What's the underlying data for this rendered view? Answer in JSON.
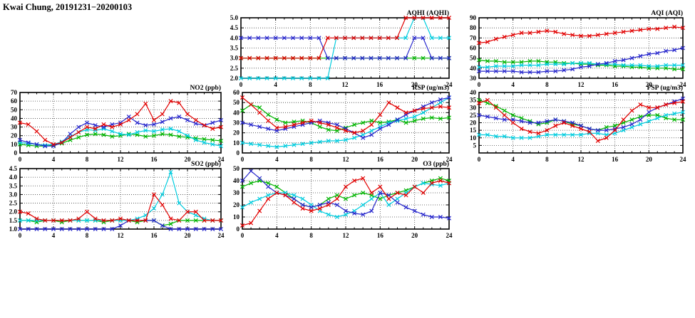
{
  "page_title": "Kwai Chung, 20191231−20200103",
  "colors": {
    "red": "#e10000",
    "green": "#00b400",
    "blue": "#2626cc",
    "cyan": "#00ccde",
    "grid": "#444444",
    "frame": "#000000"
  },
  "chart_data": [
    {
      "id": "aqhi",
      "type": "line",
      "title": "AQHI (AQHI)",
      "marker": "x",
      "grid": "dotted",
      "xlim": [
        0,
        24
      ],
      "xticks": [
        0,
        4,
        8,
        12,
        16,
        20,
        24
      ],
      "ylim": [
        2,
        5
      ],
      "yticks": [
        2,
        2.5,
        3,
        3.5,
        4,
        4.5,
        5
      ],
      "ydec": 1,
      "x": [
        0,
        1,
        2,
        3,
        4,
        5,
        6,
        7,
        8,
        9,
        10,
        11,
        12,
        13,
        14,
        15,
        16,
        17,
        18,
        19,
        20,
        21,
        22,
        23,
        24
      ],
      "series": [
        {
          "name": "green",
          "color": "green",
          "values": [
            3,
            3,
            3,
            3,
            3,
            3,
            3,
            3,
            3,
            3,
            3,
            3,
            3,
            3,
            3,
            3,
            3,
            3,
            3,
            3,
            3,
            3,
            3,
            3,
            3
          ]
        },
        {
          "name": "cyan",
          "color": "cyan",
          "values": [
            2,
            2,
            2,
            2,
            2,
            2,
            2,
            2,
            2,
            2,
            2,
            4,
            4,
            4,
            4,
            4,
            4,
            4,
            4,
            4,
            5,
            5,
            4,
            4,
            4
          ]
        },
        {
          "name": "blue",
          "color": "blue",
          "values": [
            4,
            4,
            4,
            4,
            4,
            4,
            4,
            4,
            4,
            4,
            3,
            3,
            3,
            3,
            3,
            3,
            3,
            3,
            3,
            3,
            4,
            4,
            3,
            3,
            3
          ]
        },
        {
          "name": "red",
          "color": "red",
          "values": [
            3,
            3,
            3,
            3,
            3,
            3,
            3,
            3,
            3,
            3,
            4,
            4,
            4,
            4,
            4,
            4,
            4,
            4,
            4,
            5,
            5,
            5,
            5,
            5,
            5
          ]
        }
      ]
    },
    {
      "id": "aqi",
      "type": "line",
      "title": "AQI (AQI)",
      "marker": "x",
      "grid": "dotted",
      "xlim": [
        0,
        24
      ],
      "xticks": [
        0,
        4,
        8,
        12,
        16,
        20,
        24
      ],
      "ylim": [
        30,
        90
      ],
      "yticks": [
        30,
        40,
        50,
        60,
        70,
        80,
        90
      ],
      "ydec": 0,
      "x": [
        0,
        1,
        2,
        3,
        4,
        5,
        6,
        7,
        8,
        9,
        10,
        11,
        12,
        13,
        14,
        15,
        16,
        17,
        18,
        19,
        20,
        21,
        22,
        23,
        24
      ],
      "series": [
        {
          "name": "green",
          "color": "green",
          "values": [
            48,
            47,
            47,
            46,
            46,
            46,
            47,
            47,
            46,
            46,
            45,
            45,
            44,
            44,
            43,
            43,
            42,
            42,
            41,
            41,
            40,
            40,
            40,
            39,
            39
          ]
        },
        {
          "name": "cyan",
          "color": "cyan",
          "values": [
            41,
            41,
            42,
            42,
            42,
            43,
            43,
            43,
            44,
            44,
            44,
            45,
            45,
            45,
            44,
            44,
            44,
            43,
            43,
            43,
            42,
            42,
            43,
            43,
            43
          ]
        },
        {
          "name": "blue",
          "color": "blue",
          "values": [
            37,
            37,
            37,
            37,
            37,
            36,
            36,
            36,
            37,
            37,
            38,
            39,
            41,
            42,
            44,
            45,
            47,
            48,
            50,
            52,
            54,
            55,
            57,
            58,
            60
          ]
        },
        {
          "name": "red",
          "color": "red",
          "values": [
            65,
            66,
            69,
            71,
            73,
            75,
            75,
            76,
            77,
            76,
            74,
            73,
            72,
            72,
            73,
            74,
            75,
            76,
            77,
            78,
            79,
            79,
            80,
            81,
            80
          ]
        }
      ]
    },
    {
      "id": "no2",
      "type": "line",
      "title": "NO2 (ppb)",
      "marker": "x",
      "grid": "dotted",
      "xlim": [
        0,
        24
      ],
      "xticks": [
        0,
        4,
        8,
        12,
        16,
        20,
        24
      ],
      "ylim": [
        0,
        70
      ],
      "yticks": [
        0,
        10,
        20,
        30,
        40,
        50,
        60,
        70
      ],
      "ydec": 0,
      "x": [
        0,
        1,
        2,
        3,
        4,
        5,
        6,
        7,
        8,
        9,
        10,
        11,
        12,
        13,
        14,
        15,
        16,
        17,
        18,
        19,
        20,
        21,
        22,
        23,
        24
      ],
      "series": [
        {
          "name": "green",
          "color": "green",
          "values": [
            10,
            9,
            8,
            8,
            9,
            11,
            15,
            18,
            21,
            22,
            21,
            19,
            20,
            22,
            21,
            19,
            20,
            22,
            21,
            19,
            18,
            17,
            16,
            15,
            14
          ]
        },
        {
          "name": "cyan",
          "color": "cyan",
          "values": [
            12,
            11,
            10,
            9,
            10,
            13,
            19,
            24,
            27,
            26,
            28,
            25,
            22,
            21,
            24,
            26,
            25,
            27,
            28,
            25,
            20,
            15,
            12,
            10,
            8
          ]
        },
        {
          "name": "blue",
          "color": "blue",
          "values": [
            15,
            12,
            10,
            8,
            8,
            12,
            22,
            30,
            35,
            32,
            30,
            33,
            35,
            42,
            35,
            32,
            33,
            36,
            40,
            42,
            38,
            34,
            32,
            35,
            38
          ]
        },
        {
          "name": "red",
          "color": "red",
          "values": [
            35,
            33,
            25,
            15,
            10,
            12,
            18,
            24,
            30,
            28,
            33,
            30,
            33,
            38,
            45,
            57,
            38,
            45,
            60,
            58,
            45,
            38,
            32,
            28,
            30
          ]
        }
      ]
    },
    {
      "id": "rsp",
      "type": "line",
      "title": "RSP (ug/m3)",
      "marker": "x",
      "grid": "dotted",
      "xlim": [
        0,
        24
      ],
      "xticks": [
        0,
        4,
        8,
        12,
        16,
        20,
        24
      ],
      "ylim": [
        0,
        60
      ],
      "yticks": [
        0,
        10,
        20,
        30,
        40,
        50,
        60
      ],
      "ydec": 0,
      "x": [
        0,
        1,
        2,
        3,
        4,
        5,
        6,
        7,
        8,
        9,
        10,
        11,
        12,
        13,
        14,
        15,
        16,
        17,
        18,
        19,
        20,
        21,
        22,
        23,
        24
      ],
      "series": [
        {
          "name": "green",
          "color": "green",
          "values": [
            42,
            48,
            45,
            38,
            33,
            30,
            31,
            32,
            30,
            26,
            23,
            22,
            25,
            28,
            30,
            32,
            30,
            31,
            33,
            30,
            32,
            34,
            35,
            34,
            35
          ]
        },
        {
          "name": "cyan",
          "color": "cyan",
          "values": [
            10,
            9,
            8,
            7,
            6,
            7,
            8,
            9,
            10,
            11,
            12,
            12,
            13,
            15,
            18,
            22,
            26,
            30,
            32,
            34,
            36,
            40,
            45,
            50,
            55
          ]
        },
        {
          "name": "blue",
          "color": "blue",
          "values": [
            30,
            28,
            26,
            24,
            22,
            24,
            26,
            28,
            30,
            32,
            30,
            28,
            24,
            20,
            15,
            18,
            24,
            28,
            33,
            38,
            42,
            46,
            50,
            53,
            55
          ]
        },
        {
          "name": "red",
          "color": "red",
          "values": [
            55,
            48,
            40,
            32,
            25,
            26,
            28,
            30,
            32,
            30,
            28,
            25,
            22,
            20,
            22,
            28,
            38,
            50,
            45,
            40,
            42,
            44,
            45,
            46,
            45
          ]
        }
      ]
    },
    {
      "id": "fsp",
      "type": "line",
      "title": "FSP (ug/m3)",
      "marker": "x",
      "grid": "dotted",
      "xlim": [
        0,
        24
      ],
      "xticks": [
        0,
        4,
        8,
        12,
        16,
        20,
        24
      ],
      "ylim": [
        0,
        40
      ],
      "yticks": [
        5,
        10,
        15,
        20,
        25,
        30,
        35,
        40
      ],
      "ydec": 0,
      "x": [
        0,
        1,
        2,
        3,
        4,
        5,
        6,
        7,
        8,
        9,
        10,
        11,
        12,
        13,
        14,
        15,
        16,
        17,
        18,
        19,
        20,
        21,
        22,
        23,
        24
      ],
      "series": [
        {
          "name": "green",
          "color": "green",
          "values": [
            35,
            33,
            31,
            28,
            25,
            23,
            21,
            19,
            20,
            22,
            21,
            19,
            18,
            16,
            15,
            17,
            18,
            20,
            22,
            24,
            25,
            25,
            23,
            22,
            22
          ]
        },
        {
          "name": "cyan",
          "color": "cyan",
          "values": [
            12,
            12,
            11,
            11,
            10,
            10,
            10,
            11,
            12,
            12,
            12,
            12,
            12,
            13,
            13,
            12,
            13,
            15,
            17,
            19,
            21,
            23,
            25,
            26,
            27
          ]
        },
        {
          "name": "blue",
          "color": "blue",
          "values": [
            25,
            24,
            23,
            22,
            22,
            21,
            20,
            20,
            21,
            22,
            21,
            20,
            18,
            16,
            15,
            15,
            16,
            17,
            19,
            22,
            27,
            30,
            32,
            34,
            36
          ]
        },
        {
          "name": "red",
          "color": "red",
          "values": [
            33,
            35,
            30,
            25,
            20,
            16,
            14,
            13,
            15,
            18,
            20,
            18,
            16,
            14,
            8,
            10,
            15,
            22,
            28,
            32,
            30,
            30,
            32,
            33,
            34
          ]
        }
      ]
    },
    {
      "id": "so2",
      "type": "line",
      "title": "SO2 (ppb)",
      "marker": "x",
      "grid": "dotted",
      "xlim": [
        0,
        24
      ],
      "xticks": [
        0,
        4,
        8,
        12,
        16,
        20,
        24
      ],
      "ylim": [
        1,
        4.5
      ],
      "yticks": [
        1,
        1.5,
        2,
        2.5,
        3,
        3.5,
        4,
        4.5
      ],
      "ydec": 1,
      "x": [
        0,
        1,
        2,
        3,
        4,
        5,
        6,
        7,
        8,
        9,
        10,
        11,
        12,
        13,
        14,
        15,
        16,
        17,
        18,
        19,
        20,
        21,
        22,
        23,
        24
      ],
      "series": [
        {
          "name": "green",
          "color": "green",
          "values": [
            1.5,
            1.5,
            1.4,
            1.5,
            1.5,
            1.4,
            1.5,
            1.5,
            1.5,
            1.5,
            1.4,
            1.5,
            1.5,
            1.5,
            1.4,
            1.5,
            1.5,
            1.2,
            1.3,
            1.5,
            1.5,
            1.5,
            1.5,
            1.5,
            1.5
          ]
        },
        {
          "name": "cyan",
          "color": "cyan",
          "values": [
            1.5,
            1.5,
            1.5,
            1.5,
            1.5,
            1.5,
            1.5,
            1.5,
            1.5,
            1.5,
            1.5,
            1.5,
            1.5,
            1.5,
            1.6,
            1.8,
            2.2,
            3.0,
            4.3,
            2.5,
            2.0,
            1.8,
            1.6,
            1.5,
            1.5
          ]
        },
        {
          "name": "blue",
          "color": "blue",
          "values": [
            1.0,
            1.0,
            1.0,
            1.0,
            1.0,
            1.0,
            1.0,
            1.0,
            1.0,
            1.0,
            1.0,
            1.0,
            1.2,
            1.5,
            1.5,
            1.5,
            1.5,
            1.2,
            1.0,
            1.0,
            1.0,
            1.0,
            1.0,
            1.0,
            1.0
          ]
        },
        {
          "name": "red",
          "color": "red",
          "values": [
            2.0,
            1.9,
            1.6,
            1.5,
            1.5,
            1.5,
            1.5,
            1.6,
            2.0,
            1.6,
            1.5,
            1.5,
            1.6,
            1.5,
            1.5,
            1.5,
            3.0,
            2.4,
            1.6,
            1.5,
            2.0,
            2.0,
            1.5,
            1.5,
            1.5
          ]
        }
      ]
    },
    {
      "id": "o3",
      "type": "line",
      "title": "O3 (ppb)",
      "marker": "x",
      "grid": "dotted",
      "xlim": [
        0,
        24
      ],
      "xticks": [
        0,
        4,
        8,
        12,
        16,
        20,
        24
      ],
      "ylim": [
        0,
        50
      ],
      "yticks": [
        0,
        10,
        20,
        30,
        40,
        50
      ],
      "ydec": 0,
      "x": [
        0,
        1,
        2,
        3,
        4,
        5,
        6,
        7,
        8,
        9,
        10,
        11,
        12,
        13,
        14,
        15,
        16,
        17,
        18,
        19,
        20,
        21,
        22,
        23,
        24
      ],
      "series": [
        {
          "name": "green",
          "color": "green",
          "values": [
            35,
            38,
            40,
            38,
            35,
            30,
            25,
            20,
            18,
            20,
            25,
            28,
            25,
            28,
            30,
            28,
            25,
            28,
            30,
            32,
            35,
            38,
            40,
            42,
            40
          ]
        },
        {
          "name": "cyan",
          "color": "cyan",
          "values": [
            18,
            22,
            25,
            28,
            30,
            30,
            28,
            25,
            20,
            15,
            12,
            10,
            12,
            15,
            20,
            25,
            30,
            20,
            25,
            30,
            35,
            38,
            37,
            36,
            38
          ]
        },
        {
          "name": "blue",
          "color": "blue",
          "values": [
            40,
            48,
            42,
            35,
            30,
            28,
            25,
            20,
            18,
            20,
            22,
            20,
            15,
            13,
            12,
            15,
            30,
            28,
            22,
            18,
            15,
            12,
            10,
            10,
            9
          ]
        },
        {
          "name": "red",
          "color": "red",
          "values": [
            3,
            5,
            15,
            25,
            30,
            28,
            22,
            17,
            15,
            17,
            20,
            25,
            35,
            40,
            42,
            30,
            35,
            25,
            30,
            28,
            35,
            30,
            38,
            40,
            38
          ]
        }
      ]
    }
  ]
}
